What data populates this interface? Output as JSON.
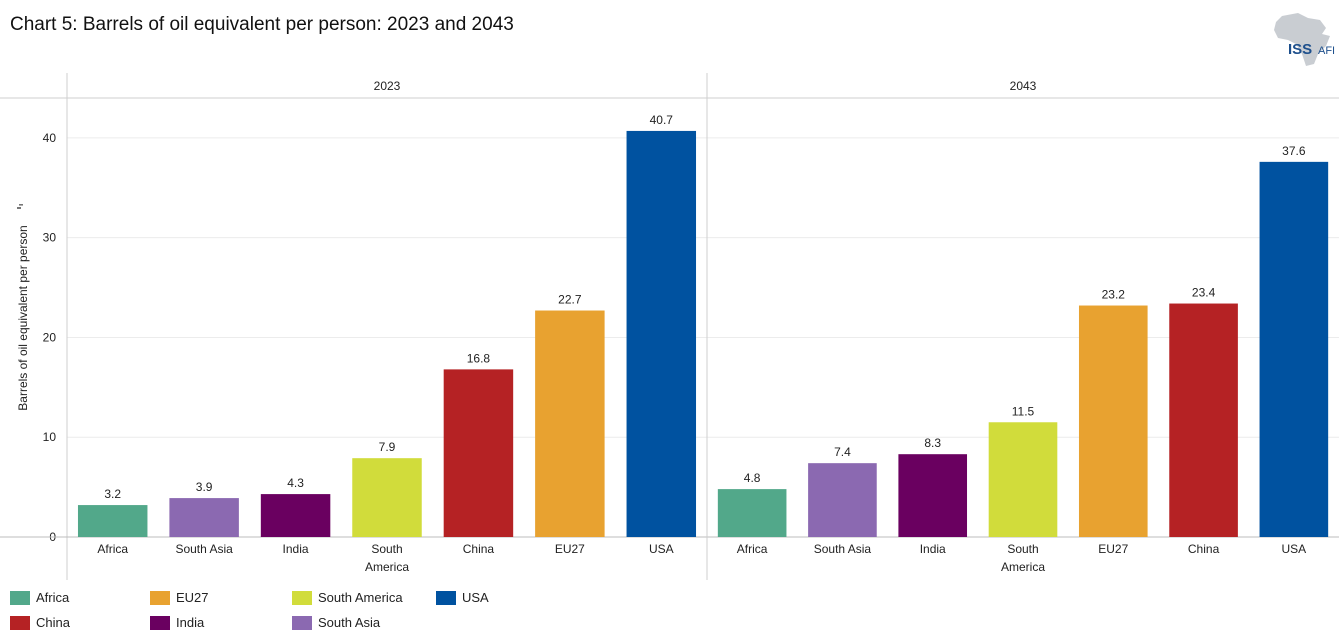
{
  "title": "Chart 5: Barrels of oil equivalent per person: 2023 and 2043",
  "logo": {
    "main": "ISS",
    "sub": "AFI"
  },
  "colors": {
    "Africa": "#52a88a",
    "South Asia": "#8b69b1",
    "India": "#6a0060",
    "South America": "#d1dc3b",
    "China": "#b52224",
    "EU27": "#e8a230",
    "USA": "#0052a0"
  },
  "chart_data": {
    "type": "bar",
    "title": "Chart 5: Barrels of oil equivalent per person: 2023 and 2043",
    "ylabel": "Barrels of oil equivalent per person",
    "ylim": [
      0,
      44
    ],
    "yticks": [
      0,
      10,
      20,
      30,
      40
    ],
    "grid": true,
    "legend": "bottom-left",
    "panels": [
      {
        "name": "2023",
        "categories": [
          "Africa",
          "South Asia",
          "India",
          "South\nAmerica",
          "China",
          "EU27",
          "USA"
        ],
        "series_keys": [
          "Africa",
          "South Asia",
          "India",
          "South America",
          "China",
          "EU27",
          "USA"
        ],
        "values": [
          3.2,
          3.9,
          4.3,
          7.9,
          16.8,
          22.7,
          40.7
        ]
      },
      {
        "name": "2043",
        "categories": [
          "Africa",
          "South Asia",
          "India",
          "South\nAmerica",
          "EU27",
          "China",
          "USA"
        ],
        "series_keys": [
          "Africa",
          "South Asia",
          "India",
          "South America",
          "EU27",
          "China",
          "USA"
        ],
        "values": [
          4.8,
          7.4,
          8.3,
          11.5,
          23.2,
          23.4,
          37.6
        ]
      }
    ]
  },
  "legend_items": [
    {
      "label": "Africa",
      "key": "Africa"
    },
    {
      "label": "EU27",
      "key": "EU27"
    },
    {
      "label": "South America",
      "key": "South America"
    },
    {
      "label": "USA",
      "key": "USA"
    },
    {
      "label": "China",
      "key": "China"
    },
    {
      "label": "India",
      "key": "India"
    },
    {
      "label": "South Asia",
      "key": "South Asia"
    }
  ]
}
